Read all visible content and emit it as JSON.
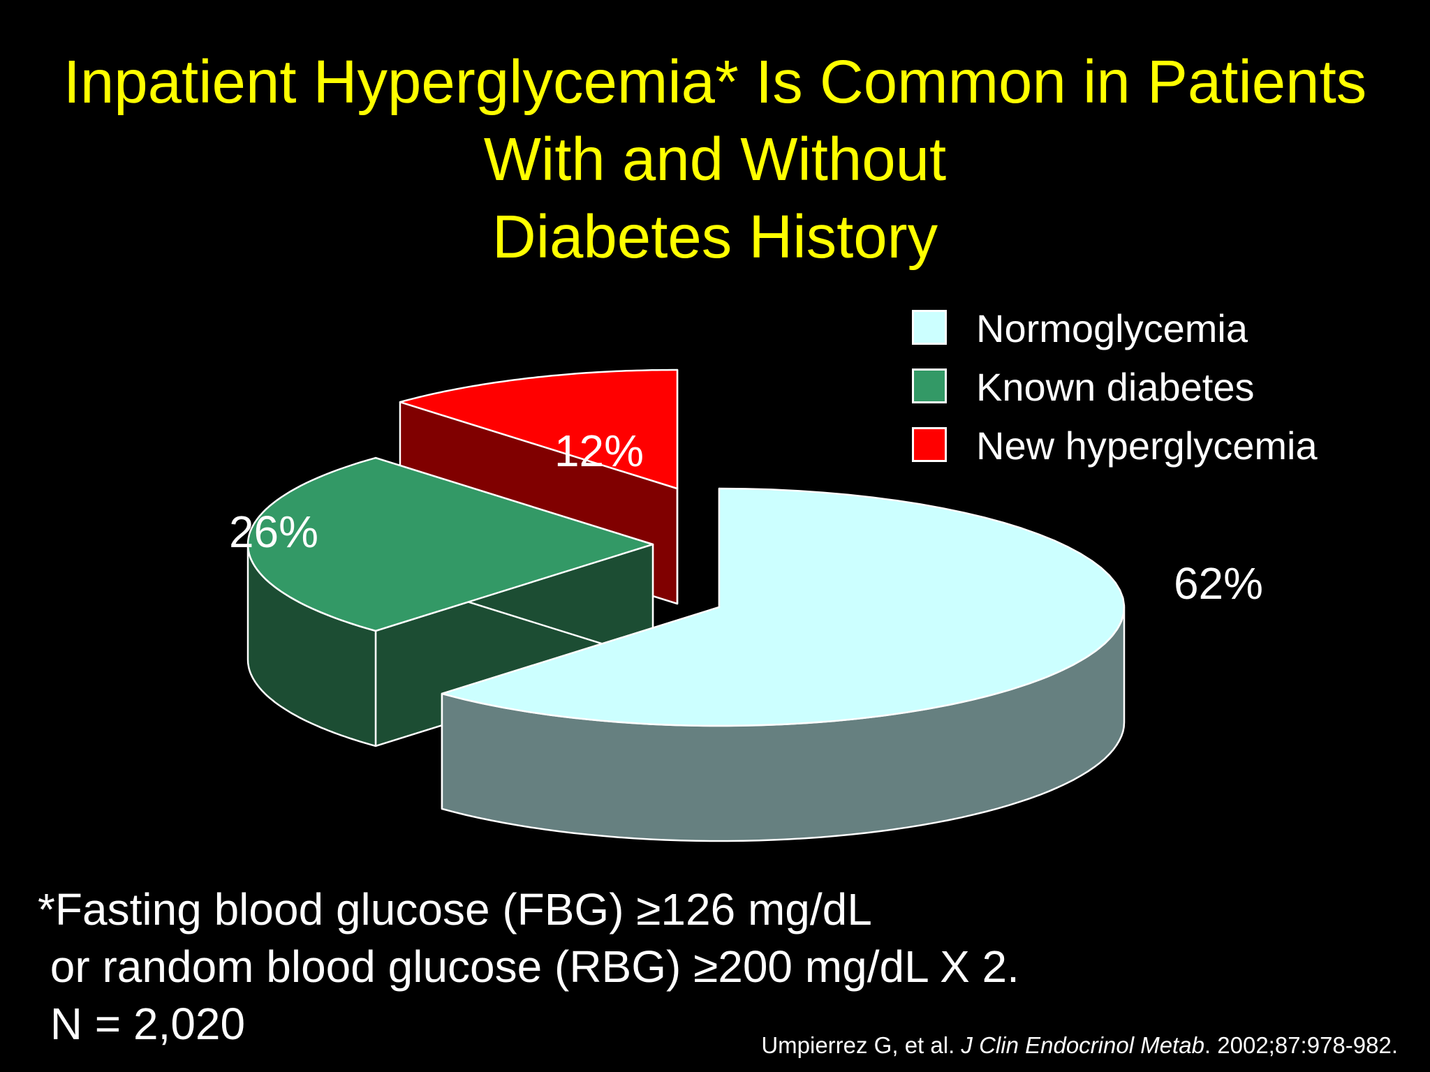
{
  "title_lines": [
    "Inpatient Hyperglycemia* Is Common in Patients",
    "With and Without",
    "Diabetes History"
  ],
  "chart_data": {
    "type": "pie",
    "style": "3d-exploded",
    "categories": [
      "Normoglycemia",
      "Known diabetes",
      "New hyperglycemia"
    ],
    "values": [
      62,
      26,
      12
    ],
    "value_labels": [
      "62%",
      "26%",
      "12%"
    ],
    "colors": [
      "#ccffff",
      "#339966",
      "#ff0000"
    ],
    "side_colors": [
      "#668080",
      "#1c4d33",
      "#800000"
    ],
    "legend_position": "top-right"
  },
  "footnote": {
    "line1": "*Fasting blood glucose (FBG) ≥126 mg/dL",
    "line2": " or random blood glucose (RBG) ≥200 mg/dL X 2.",
    "line3": " N = 2,020"
  },
  "citation": {
    "authors": "Umpierrez G, et al.",
    "journal": "J Clin Endocrinol Metab",
    "details": ". 2002;87:978-982."
  }
}
